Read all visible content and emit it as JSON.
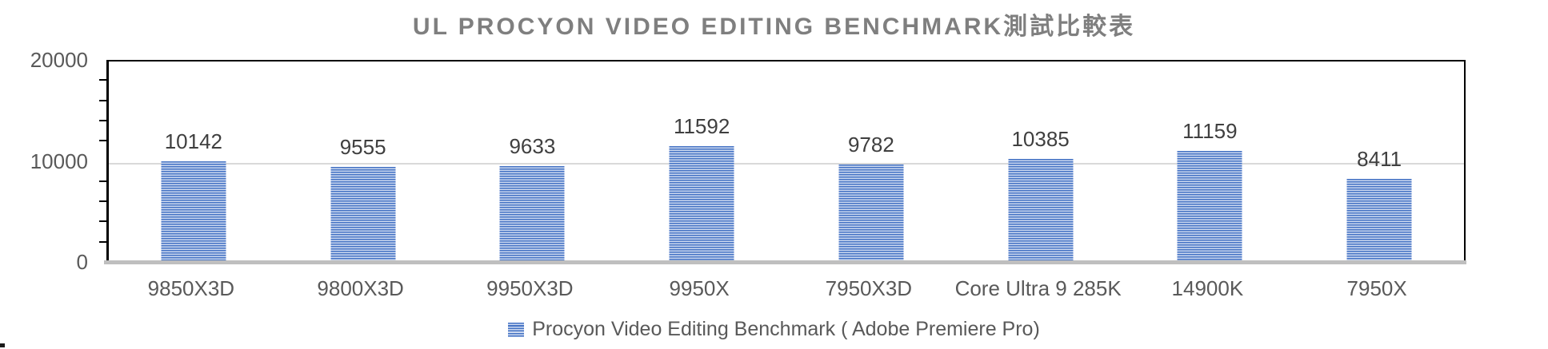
{
  "title": "UL PROCYON VIDEO EDITING BENCHMARK測試比較表",
  "legend": {
    "label": "Procyon Video Editing Benchmark ( Adobe Premiere Pro)"
  },
  "colors": {
    "bar_stripe_dark": "#4472c4",
    "bar_stripe_light": "#cdd9f0",
    "title_text": "#7f7f7f",
    "axis_text": "#595959",
    "data_label_text": "#3f3f3f",
    "gridline": "#d9d9d9",
    "baseline": "#bfbfbf",
    "plot_border": "#000000"
  },
  "chart_data": {
    "type": "bar",
    "title": "UL PROCYON VIDEO EDITING BENCHMARK測試比較表",
    "categories": [
      "9850X3D",
      "9800X3D",
      "9950X3D",
      "9950X",
      "7950X3D",
      "Core Ultra 9 285K",
      "14900K",
      "7950X"
    ],
    "values": [
      10142,
      9555,
      9633,
      11592,
      9782,
      10385,
      11159,
      8411
    ],
    "xlabel": "",
    "ylabel": "",
    "ylim": [
      0,
      20000
    ],
    "ytick_values": [
      0,
      10000,
      20000
    ],
    "ytick_labels": [
      "0",
      "10000",
      "20000"
    ],
    "minor_tick_interval": 2000,
    "gridline_values": [
      10000
    ],
    "grid": "horizontal-major-only",
    "data_labels_shown": true,
    "legend_entries": [
      "Procyon Video Editing Benchmark ( Adobe Premiere Pro)"
    ],
    "legend_position": "bottom",
    "bar_fill_pattern": "horizontal-stripes-blue"
  }
}
